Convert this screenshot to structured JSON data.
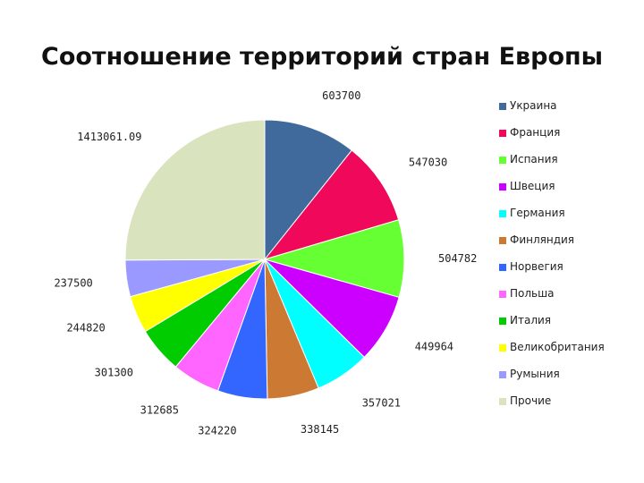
{
  "chart_data": {
    "type": "pie",
    "title": "Соотношение территорий стран Европы",
    "categories": [
      "Украина",
      "Франция",
      "Испания",
      "Швеция",
      "Германия",
      "Финляндия",
      "Норвегия",
      "Польша",
      "Италия",
      "Великобритания",
      "Румыния",
      "Прочие"
    ],
    "values": [
      603700,
      547030,
      504782,
      449964,
      357021,
      338145,
      324220,
      312685,
      301300,
      244820,
      237500,
      1413061.09
    ],
    "value_labels": [
      "603700",
      "547030",
      "504782",
      "449964",
      "357021",
      "338145",
      "324220",
      "312685",
      "301300",
      "244820",
      "237500",
      "1413061.09"
    ],
    "colors": [
      "#406A9C",
      "#F0085A",
      "#66FF33",
      "#CC00FF",
      "#00FFFF",
      "#CC7A33",
      "#3366FF",
      "#FF66FF",
      "#00CC00",
      "#FFFF00",
      "#9999FF",
      "#D9E4BF"
    ],
    "legend_position": "right"
  }
}
